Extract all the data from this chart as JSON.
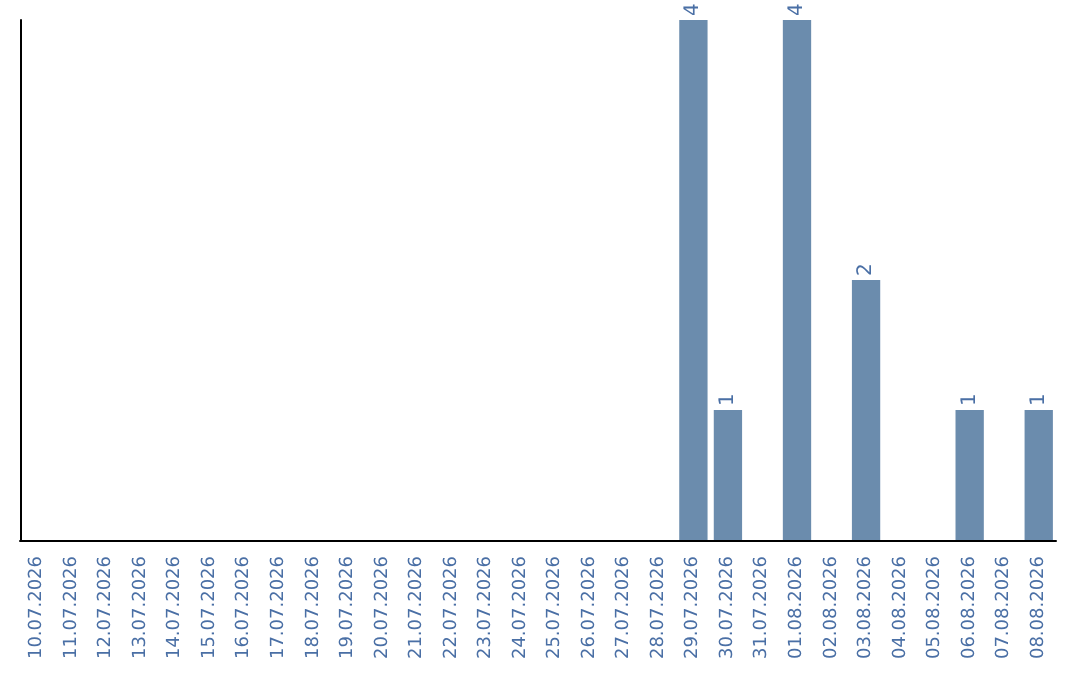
{
  "chart_data": {
    "type": "bar",
    "categories": [
      "10.07.2026",
      "11.07.2026",
      "12.07.2026",
      "13.07.2026",
      "14.07.2026",
      "15.07.2026",
      "16.07.2026",
      "17.07.2026",
      "18.07.2026",
      "19.07.2026",
      "20.07.2026",
      "21.07.2026",
      "22.07.2026",
      "23.07.2026",
      "24.07.2026",
      "25.07.2026",
      "26.07.2026",
      "27.07.2026",
      "28.07.2026",
      "29.07.2026",
      "30.07.2026",
      "31.07.2026",
      "01.08.2026",
      "02.08.2026",
      "03.08.2026",
      "04.08.2026",
      "05.08.2026",
      "06.08.2026",
      "07.08.2026",
      "08.08.2026"
    ],
    "values": [
      null,
      null,
      null,
      null,
      null,
      null,
      null,
      null,
      null,
      null,
      null,
      null,
      null,
      null,
      null,
      null,
      null,
      null,
      null,
      4,
      1,
      null,
      4,
      null,
      2,
      null,
      null,
      1,
      null,
      1
    ],
    "value_labels": [
      null,
      null,
      null,
      null,
      null,
      null,
      null,
      null,
      null,
      null,
      null,
      null,
      null,
      null,
      null,
      null,
      null,
      null,
      null,
      "4",
      "1",
      null,
      "4",
      null,
      "2",
      null,
      null,
      "1",
      null,
      "1"
    ],
    "color": "#6b8cad",
    "grid": false,
    "tick_labels": "x"
  }
}
